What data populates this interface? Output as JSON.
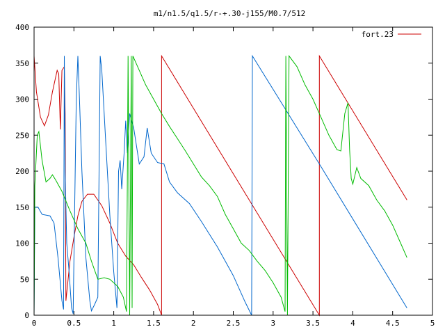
{
  "chart_data": {
    "type": "line",
    "title": "m1/n1.5/q1.5/r-+.30-j155/M0.7/512",
    "xlabel": "",
    "ylabel": "",
    "xlim": [
      0,
      5
    ],
    "ylim": [
      0,
      400
    ],
    "x_ticks": [
      "0",
      "0.5",
      "1",
      "1.5",
      "2",
      "2.5",
      "3",
      "3.5",
      "4",
      "4.5",
      "5"
    ],
    "y_ticks": [
      "0",
      "50",
      "100",
      "150",
      "200",
      "250",
      "300",
      "350",
      "400"
    ],
    "grid": false,
    "legend": {
      "position": "top-right",
      "entries": [
        "fort.23"
      ]
    },
    "series": [
      {
        "name": "fort.23",
        "color": "#cc0000",
        "points": [
          [
            0,
            360
          ],
          [
            0.03,
            310
          ],
          [
            0.08,
            275
          ],
          [
            0.13,
            263
          ],
          [
            0.18,
            278
          ],
          [
            0.23,
            310
          ],
          [
            0.29,
            340
          ],
          [
            0.31,
            335
          ],
          [
            0.33,
            258
          ],
          [
            0.35,
            340
          ],
          [
            0.38,
            345
          ],
          [
            0.39,
            280
          ],
          [
            0.4,
            20
          ],
          [
            0.45,
            75
          ],
          [
            0.5,
            108
          ],
          [
            0.55,
            138
          ],
          [
            0.6,
            158
          ],
          [
            0.67,
            168
          ],
          [
            0.75,
            168
          ],
          [
            0.85,
            152
          ],
          [
            0.95,
            128
          ],
          [
            1.05,
            100
          ],
          [
            1.15,
            82
          ],
          [
            1.25,
            70
          ],
          [
            1.35,
            52
          ],
          [
            1.45,
            35
          ],
          [
            1.55,
            15
          ],
          [
            1.6,
            0
          ],
          [
            1.6,
            360
          ],
          [
            3.58,
            0
          ],
          [
            3.58,
            360
          ],
          [
            4.68,
            160
          ]
        ]
      },
      {
        "name": "",
        "color": "#0066cc",
        "points": [
          [
            0,
            0
          ],
          [
            0.01,
            150
          ],
          [
            0.05,
            150
          ],
          [
            0.1,
            140
          ],
          [
            0.2,
            138
          ],
          [
            0.25,
            128
          ],
          [
            0.3,
            80
          ],
          [
            0.35,
            20
          ],
          [
            0.37,
            8
          ],
          [
            0.38,
            360
          ],
          [
            0.39,
            200
          ],
          [
            0.41,
            100
          ],
          [
            0.44,
            60
          ],
          [
            0.47,
            10
          ],
          [
            0.49,
            2
          ],
          [
            0.51,
            150
          ],
          [
            0.53,
            300
          ],
          [
            0.55,
            360
          ],
          [
            0.57,
            300
          ],
          [
            0.6,
            200
          ],
          [
            0.65,
            80
          ],
          [
            0.7,
            20
          ],
          [
            0.72,
            6
          ],
          [
            0.76,
            15
          ],
          [
            0.8,
            25
          ],
          [
            0.83,
            360
          ],
          [
            0.85,
            340
          ],
          [
            0.9,
            240
          ],
          [
            0.95,
            140
          ],
          [
            1.0,
            60
          ],
          [
            1.04,
            10
          ],
          [
            1.06,
            200
          ],
          [
            1.08,
            215
          ],
          [
            1.1,
            175
          ],
          [
            1.13,
            225
          ],
          [
            1.15,
            270
          ],
          [
            1.17,
            225
          ],
          [
            1.2,
            280
          ],
          [
            1.25,
            260
          ],
          [
            1.32,
            210
          ],
          [
            1.38,
            220
          ],
          [
            1.42,
            260
          ],
          [
            1.47,
            225
          ],
          [
            1.55,
            212
          ],
          [
            1.63,
            210
          ],
          [
            1.7,
            185
          ],
          [
            1.8,
            170
          ],
          [
            1.95,
            155
          ],
          [
            2.1,
            130
          ],
          [
            2.3,
            95
          ],
          [
            2.5,
            55
          ],
          [
            2.65,
            18
          ],
          [
            2.73,
            0
          ],
          [
            2.74,
            360
          ],
          [
            3.58,
            210
          ],
          [
            4.68,
            10
          ]
        ]
      },
      {
        "name": "",
        "color": "#00bb00",
        "points": [
          [
            0,
            0
          ],
          [
            0.01,
            180
          ],
          [
            0.04,
            250
          ],
          [
            0.06,
            255
          ],
          [
            0.1,
            215
          ],
          [
            0.15,
            185
          ],
          [
            0.2,
            190
          ],
          [
            0.23,
            195
          ],
          [
            0.27,
            188
          ],
          [
            0.35,
            172
          ],
          [
            0.45,
            145
          ],
          [
            0.55,
            120
          ],
          [
            0.65,
            100
          ],
          [
            0.72,
            75
          ],
          [
            0.8,
            50
          ],
          [
            0.88,
            52
          ],
          [
            0.95,
            50
          ],
          [
            1.05,
            40
          ],
          [
            1.12,
            25
          ],
          [
            1.16,
            5
          ],
          [
            1.17,
            180
          ],
          [
            1.18,
            360
          ],
          [
            1.2,
            0
          ],
          [
            1.22,
            360
          ],
          [
            1.23,
            10
          ],
          [
            1.24,
            360
          ],
          [
            1.3,
            345
          ],
          [
            1.4,
            320
          ],
          [
            1.5,
            300
          ],
          [
            1.6,
            280
          ],
          [
            1.7,
            262
          ],
          [
            1.8,
            245
          ],
          [
            1.9,
            228
          ],
          [
            2.0,
            210
          ],
          [
            2.1,
            192
          ],
          [
            2.2,
            180
          ],
          [
            2.3,
            165
          ],
          [
            2.4,
            140
          ],
          [
            2.5,
            120
          ],
          [
            2.6,
            100
          ],
          [
            2.7,
            90
          ],
          [
            2.8,
            75
          ],
          [
            2.9,
            62
          ],
          [
            3.0,
            45
          ],
          [
            3.1,
            25
          ],
          [
            3.15,
            5
          ],
          [
            3.16,
            360
          ],
          [
            3.18,
            0
          ],
          [
            3.2,
            360
          ],
          [
            3.3,
            345
          ],
          [
            3.4,
            320
          ],
          [
            3.5,
            300
          ],
          [
            3.6,
            275
          ],
          [
            3.7,
            250
          ],
          [
            3.8,
            230
          ],
          [
            3.85,
            228
          ],
          [
            3.9,
            280
          ],
          [
            3.94,
            295
          ],
          [
            3.96,
            230
          ],
          [
            3.98,
            190
          ],
          [
            4.0,
            182
          ],
          [
            4.05,
            205
          ],
          [
            4.1,
            190
          ],
          [
            4.2,
            180
          ],
          [
            4.3,
            160
          ],
          [
            4.4,
            145
          ],
          [
            4.5,
            125
          ],
          [
            4.6,
            100
          ],
          [
            4.68,
            80
          ]
        ]
      }
    ]
  }
}
